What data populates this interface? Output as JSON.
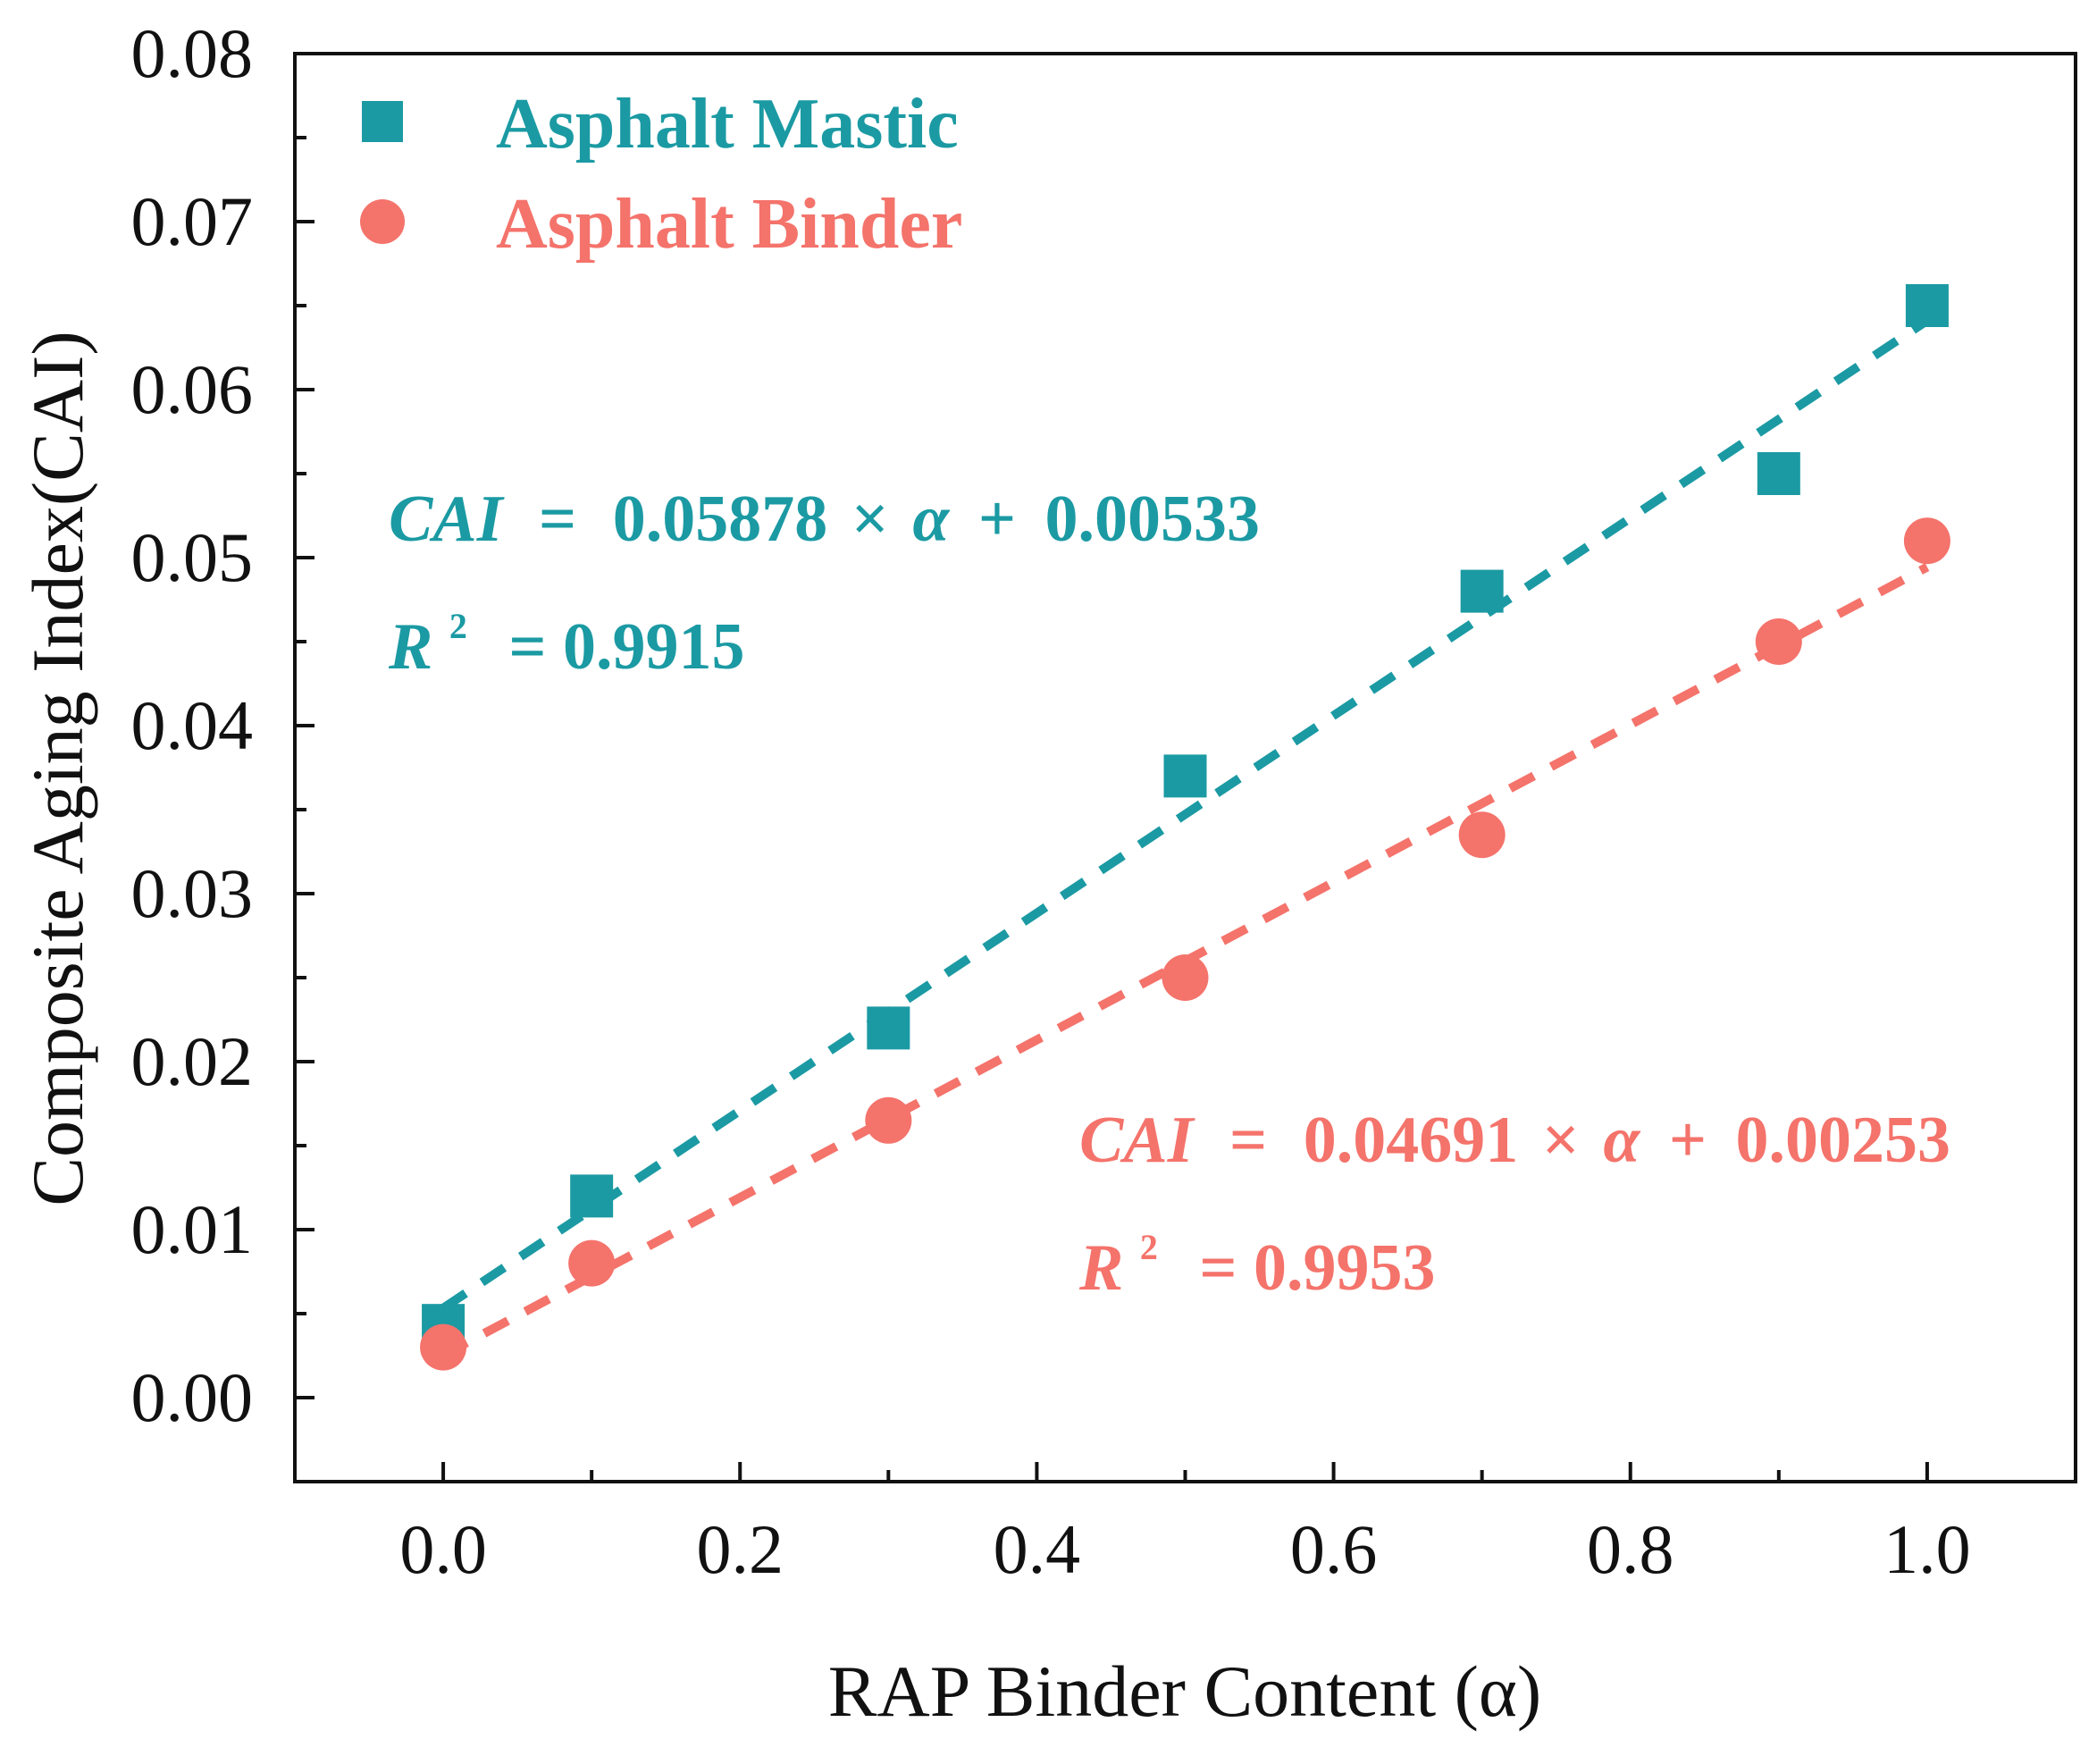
{
  "chart_data": {
    "type": "scatter",
    "title": "",
    "xlabel": "RAP Binder Content (α)",
    "ylabel": "Composite Aging Index(CAI)",
    "xlim": [
      -0.1,
      1.1
    ],
    "ylim": [
      -0.005,
      0.08
    ],
    "x_ticks": [
      0.0,
      0.2,
      0.4,
      0.6,
      0.8,
      1.0
    ],
    "x_tick_labels": [
      "0.0",
      "0.2",
      "0.4",
      "0.6",
      "0.8",
      "1.0"
    ],
    "y_ticks": [
      0.0,
      0.01,
      0.02,
      0.03,
      0.04,
      0.05,
      0.06,
      0.07,
      0.08
    ],
    "y_tick_labels": [
      "0.00",
      "0.01",
      "0.02",
      "0.03",
      "0.04",
      "0.05",
      "0.06",
      "0.07",
      "0.08"
    ],
    "grid": false,
    "legend_position": "top-left",
    "series": [
      {
        "name": "Asphalt Mastic",
        "marker": "square",
        "color": "#1b9aa3",
        "x": [
          0.0,
          0.1,
          0.3,
          0.5,
          0.7,
          0.9,
          1.0
        ],
        "y": [
          0.0043,
          0.012,
          0.022,
          0.037,
          0.048,
          0.055,
          0.065
        ],
        "fit": {
          "slope": 0.05878,
          "intercept": 0.00533
        },
        "equation": {
          "lhs": "CAI",
          "eq": "=",
          "coef": "0.05878",
          "times": "×",
          "var": "α",
          "plus": "+",
          "intercept": "0.00533",
          "r2_label": "R",
          "r2_sup": "2",
          "r2_value": "= 0.9915"
        }
      },
      {
        "name": "Asphalt Binder",
        "marker": "circle",
        "color": "#f4736b",
        "x": [
          0.0,
          0.1,
          0.3,
          0.5,
          0.7,
          0.9,
          1.0
        ],
        "y": [
          0.003,
          0.008,
          0.0165,
          0.025,
          0.0335,
          0.045,
          0.051
        ],
        "fit": {
          "slope": 0.04691,
          "intercept": 0.00253
        },
        "equation": {
          "lhs": "CAI",
          "eq": "=",
          "coef": "0.04691",
          "times": "×",
          "var": "α",
          "plus": "+",
          "intercept": "0.00253",
          "r2_label": "R",
          "r2_sup": "2",
          "r2_value": "= 0.9953"
        }
      }
    ]
  }
}
